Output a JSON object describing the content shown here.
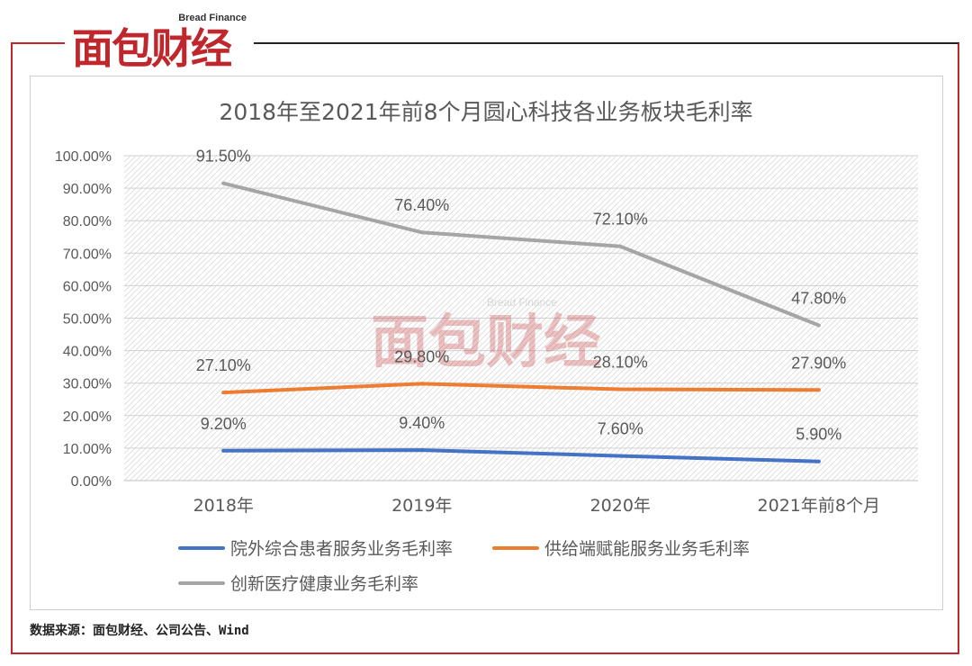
{
  "logo": {
    "brand": "面包财经",
    "tagline": "Bread Finance"
  },
  "watermark": {
    "brand": "面包财经",
    "tagline": "Bread Finance"
  },
  "source_note": "数据来源：面包财经、公司公告、Wind",
  "chart_data": {
    "type": "line",
    "title": "2018年至2021年前8个月圆心科技各业务板块毛利率",
    "xlabel": "",
    "ylabel": "",
    "categories": [
      "2018年",
      "2019年",
      "2020年",
      "2021年前8个月"
    ],
    "ylim": [
      0,
      100
    ],
    "yticks": [
      "0.00%",
      "10.00%",
      "20.00%",
      "30.00%",
      "40.00%",
      "50.00%",
      "60.00%",
      "70.00%",
      "80.00%",
      "90.00%",
      "100.00%"
    ],
    "grid": true,
    "legend_position": "bottom",
    "series": [
      {
        "name": "院外综合患者服务业务毛利率",
        "color": "#4472c4",
        "values": [
          9.2,
          9.4,
          7.6,
          5.9
        ],
        "labels": [
          "9.20%",
          "9.40%",
          "7.60%",
          "5.90%"
        ]
      },
      {
        "name": "供给端赋能服务业务毛利率",
        "color": "#ed7d31",
        "values": [
          27.1,
          29.8,
          28.1,
          27.9
        ],
        "labels": [
          "27.10%",
          "29.80%",
          "28.10%",
          "27.90%"
        ]
      },
      {
        "name": "创新医疗健康业务毛利率",
        "color": "#a5a5a5",
        "values": [
          91.5,
          76.4,
          72.1,
          47.8
        ],
        "labels": [
          "91.50%",
          "76.40%",
          "72.10%",
          "47.80%"
        ]
      }
    ]
  }
}
